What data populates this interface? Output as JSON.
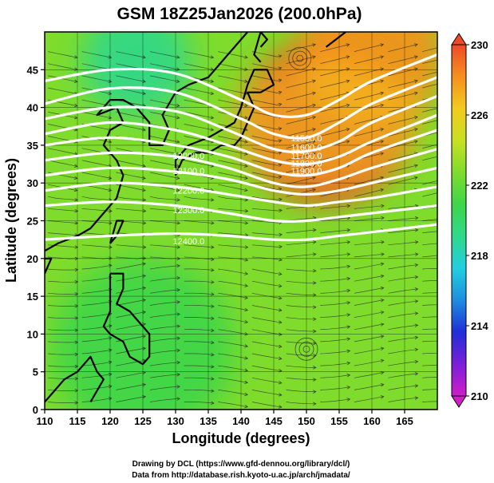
{
  "chart_data": {
    "type": "heatmap",
    "title": "GSM 18Z25Jan2026 (200.0hPa)",
    "xlabel": "Longitude (degrees)",
    "ylabel": "Latitude (degrees)",
    "xlim": [
      110,
      170
    ],
    "ylim": [
      0,
      50
    ],
    "xticks": [
      110,
      115,
      120,
      125,
      130,
      135,
      140,
      145,
      150,
      155,
      160,
      165
    ],
    "yticks": [
      0,
      5,
      10,
      15,
      20,
      25,
      30,
      35,
      40,
      45
    ],
    "colorbar": {
      "min": 210,
      "max": 230,
      "ticks": [
        210,
        214,
        218,
        222,
        226,
        230
      ],
      "colors": [
        "#d01ec8",
        "#7a1fd8",
        "#1f2fd8",
        "#1e8de0",
        "#22cfe0",
        "#2fd88a",
        "#3ed64a",
        "#7fdc2c",
        "#c8e022",
        "#f2cb1e",
        "#f5901e",
        "#ef4a28"
      ]
    },
    "contours": [
      {
        "label": "11500.0",
        "points": [
          [
            110,
            43.5
          ],
          [
            120,
            45
          ],
          [
            130,
            44.5
          ],
          [
            140,
            41
          ],
          [
            145,
            39
          ],
          [
            150,
            39
          ],
          [
            155,
            41
          ],
          [
            160,
            43.5
          ],
          [
            170,
            47
          ]
        ]
      },
      {
        "label": "11600.0",
        "points": [
          [
            110,
            40.5
          ],
          [
            120,
            42.5
          ],
          [
            130,
            42
          ],
          [
            140,
            38.5
          ],
          [
            145,
            36.5
          ],
          [
            150,
            36
          ],
          [
            155,
            38
          ],
          [
            160,
            40.5
          ],
          [
            170,
            44
          ]
        ]
      },
      {
        "label": "11700.0",
        "points": [
          [
            110,
            38.5
          ],
          [
            120,
            40
          ],
          [
            130,
            39.5
          ],
          [
            138,
            37
          ],
          [
            145,
            34.5
          ],
          [
            150,
            34.2
          ],
          [
            155,
            35.5
          ],
          [
            160,
            38
          ],
          [
            170,
            41.5
          ]
        ]
      },
      {
        "label": "11800.0",
        "points": [
          [
            110,
            36.5
          ],
          [
            120,
            38
          ],
          [
            130,
            37
          ],
          [
            138,
            35
          ],
          [
            145,
            33
          ],
          [
            150,
            32.5
          ],
          [
            155,
            33.5
          ],
          [
            160,
            35.5
          ],
          [
            170,
            39
          ]
        ]
      },
      {
        "label": "11900.0",
        "points": [
          [
            110,
            35
          ],
          [
            120,
            36
          ],
          [
            130,
            35
          ],
          [
            138,
            33.5
          ],
          [
            145,
            31.5
          ],
          [
            150,
            31
          ],
          [
            155,
            32
          ],
          [
            160,
            34
          ],
          [
            170,
            37
          ]
        ]
      },
      {
        "label": "12000.0",
        "points": [
          [
            110,
            33
          ],
          [
            120,
            34
          ],
          [
            130,
            33.5
          ],
          [
            138,
            32
          ],
          [
            145,
            30
          ],
          [
            150,
            29.5
          ],
          [
            155,
            30.5
          ],
          [
            160,
            32
          ],
          [
            170,
            34.5
          ]
        ]
      },
      {
        "label": "12100.0",
        "points": [
          [
            110,
            31
          ],
          [
            120,
            32
          ],
          [
            130,
            31.5
          ],
          [
            138,
            30.5
          ],
          [
            145,
            29
          ],
          [
            150,
            28.5
          ],
          [
            155,
            29
          ],
          [
            160,
            30
          ],
          [
            170,
            32
          ]
        ]
      },
      {
        "label": "12200.0",
        "points": [
          [
            110,
            29
          ],
          [
            120,
            30
          ],
          [
            130,
            29.5
          ],
          [
            138,
            28.5
          ],
          [
            145,
            27.5
          ],
          [
            150,
            27
          ],
          [
            155,
            27.5
          ],
          [
            160,
            28
          ],
          [
            170,
            29.5
          ]
        ]
      },
      {
        "label": "12300.0",
        "points": [
          [
            110,
            27
          ],
          [
            120,
            27.5
          ],
          [
            130,
            27
          ],
          [
            138,
            26
          ],
          [
            145,
            25
          ],
          [
            150,
            25
          ],
          [
            155,
            25.5
          ],
          [
            160,
            26
          ],
          [
            170,
            27
          ]
        ]
      },
      {
        "label": "12400.0",
        "points": [
          [
            110,
            22.5
          ],
          [
            120,
            23
          ],
          [
            130,
            23.3
          ],
          [
            138,
            23
          ],
          [
            145,
            22.5
          ],
          [
            150,
            22.5
          ],
          [
            155,
            23
          ],
          [
            160,
            23.5
          ],
          [
            170,
            24.5
          ]
        ]
      }
    ],
    "visible_contour_labels": [
      {
        "label": "11500.0",
        "at": [
          150,
          35.5
        ]
      },
      {
        "label": "11600.0",
        "at": [
          150,
          34.3
        ]
      },
      {
        "label": "11700.0",
        "at": [
          150,
          33.2
        ]
      },
      {
        "label": "11800.0",
        "at": [
          150,
          32.2
        ]
      },
      {
        "label": "11900.0",
        "at": [
          150,
          31.2
        ]
      },
      {
        "label": "12000.0",
        "at": [
          132,
          33.2
        ]
      },
      {
        "label": "12100.0",
        "at": [
          132,
          31.2
        ]
      },
      {
        "label": "12200.0",
        "at": [
          132,
          28.6
        ]
      },
      {
        "label": "12300.0",
        "at": [
          132,
          26.0
        ]
      },
      {
        "label": "12400.0",
        "at": [
          132,
          21.9
        ]
      }
    ],
    "temperature_features": [
      {
        "name": "warm-core",
        "lon": 153,
        "lat": 38,
        "value": 228.5,
        "spread": 9
      },
      {
        "name": "warm-north",
        "lon": 160,
        "lat": 47,
        "value": 228,
        "spread": 8
      },
      {
        "name": "cool-west",
        "lon": 124,
        "lat": 46,
        "value": 219,
        "spread": 6
      },
      {
        "name": "cool-tropics",
        "lon": 125,
        "lat": 8,
        "value": 221.2,
        "spread": 10
      }
    ],
    "background_value": 223
  },
  "footer": {
    "line1": "Drawing by DCL (https://www.gfd-dennou.org/library/dcl/)",
    "line2": "Data from http://database.rish.kyoto-u.ac.jp/arch/jmadata/"
  }
}
